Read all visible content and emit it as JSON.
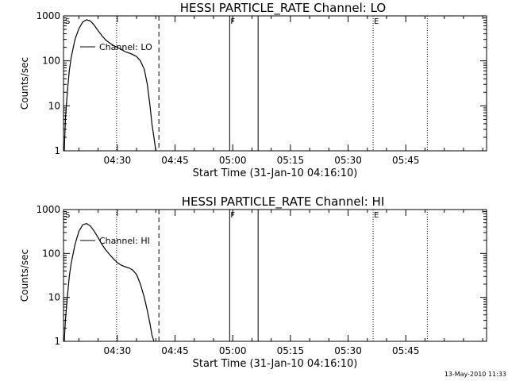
{
  "footer": {
    "timestamp": "13-May-2010 11:33"
  },
  "chart_data": [
    {
      "type": "line",
      "title": "HESSI PARTICLE_RATE Channel: LO",
      "xlabel": "Start Time (31-Jan-10 04:16:10)",
      "ylabel": "Counts/sec",
      "y_scale": "log",
      "ylim": [
        1,
        1000
      ],
      "xlim_minutes_after_start": [
        0,
        110
      ],
      "x_ticks": [
        {
          "label": "04:30",
          "value": 14
        },
        {
          "label": "04:45",
          "value": 29
        },
        {
          "label": "05:00",
          "value": 44
        },
        {
          "label": "05:15",
          "value": 59
        },
        {
          "label": "05:30",
          "value": 74
        },
        {
          "label": "05:45",
          "value": 89
        }
      ],
      "y_ticks": [
        {
          "label": "1",
          "value": 1
        },
        {
          "label": "10",
          "value": 10
        },
        {
          "label": "100",
          "value": 100
        },
        {
          "label": "1000",
          "value": 1000
        }
      ],
      "legend": {
        "label": "Channel: LO",
        "placement": "top-left"
      },
      "vertical_markers": [
        {
          "x": 13.8,
          "style": "dotted",
          "label": ""
        },
        {
          "x": 24.8,
          "style": "dashed",
          "label": ""
        },
        {
          "x": 43.2,
          "style": "solid",
          "label": "F"
        },
        {
          "x": 50.6,
          "style": "solid",
          "label": ""
        },
        {
          "x": 80.5,
          "style": "dotted",
          "label": "E"
        },
        {
          "x": 94.6,
          "style": "dotted",
          "label": ""
        }
      ],
      "corner_marker": "S",
      "series": [
        {
          "x": [
            0.2,
            0.5,
            1,
            1.5,
            2,
            3,
            4,
            5,
            6,
            7,
            8,
            9,
            10,
            11,
            12,
            13,
            14,
            15,
            16,
            17,
            18,
            19,
            20,
            21,
            21.8,
            22.5,
            23,
            23.5,
            24
          ],
          "y": [
            1,
            5,
            20,
            60,
            120,
            300,
            520,
            730,
            820,
            770,
            620,
            470,
            360,
            290,
            250,
            220,
            200,
            180,
            160,
            150,
            138,
            125,
            100,
            65,
            30,
            10,
            4,
            2,
            1
          ]
        }
      ]
    },
    {
      "type": "line",
      "title": "HESSI PARTICLE_RATE Channel: HI",
      "xlabel": "Start Time (31-Jan-10 04:16:10)",
      "ylabel": "Counts/sec",
      "y_scale": "log",
      "ylim": [
        1,
        1000
      ],
      "xlim_minutes_after_start": [
        0,
        110
      ],
      "x_ticks": [
        {
          "label": "04:30",
          "value": 14
        },
        {
          "label": "04:45",
          "value": 29
        },
        {
          "label": "05:00",
          "value": 44
        },
        {
          "label": "05:15",
          "value": 59
        },
        {
          "label": "05:30",
          "value": 74
        },
        {
          "label": "05:45",
          "value": 89
        }
      ],
      "y_ticks": [
        {
          "label": "1",
          "value": 1
        },
        {
          "label": "10",
          "value": 10
        },
        {
          "label": "100",
          "value": 100
        },
        {
          "label": "1000",
          "value": 1000
        }
      ],
      "legend": {
        "label": "Channel: HI",
        "placement": "top-left"
      },
      "vertical_markers": [
        {
          "x": 13.8,
          "style": "dotted",
          "label": ""
        },
        {
          "x": 24.8,
          "style": "dashed",
          "label": ""
        },
        {
          "x": 43.2,
          "style": "solid",
          "label": "F"
        },
        {
          "x": 50.6,
          "style": "solid",
          "label": ""
        },
        {
          "x": 80.5,
          "style": "dotted",
          "label": "E"
        },
        {
          "x": 94.6,
          "style": "dotted",
          "label": ""
        }
      ],
      "corner_marker": "S",
      "series": [
        {
          "x": [
            0.2,
            0.5,
            1,
            1.5,
            2,
            3,
            4,
            5,
            6,
            7,
            8,
            9,
            10,
            11,
            12,
            13,
            14,
            15,
            16,
            17,
            18,
            19,
            20,
            21,
            21.8,
            22.5,
            23,
            23.5
          ],
          "y": [
            1,
            3,
            10,
            30,
            60,
            160,
            320,
            450,
            480,
            420,
            320,
            230,
            160,
            120,
            95,
            75,
            62,
            54,
            50,
            47,
            42,
            33,
            20,
            10,
            5,
            2.5,
            1.4,
            1
          ]
        }
      ]
    }
  ]
}
